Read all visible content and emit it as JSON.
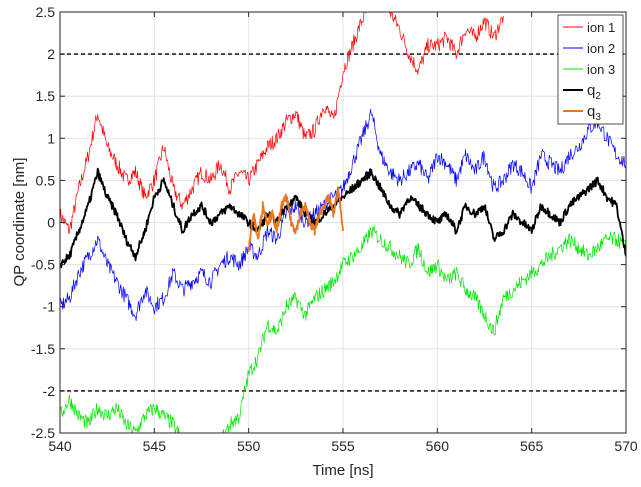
{
  "chart_data": {
    "type": "line",
    "xlabel": "Time [ns]",
    "ylabel": "QP coordinate [nm]",
    "xlim": [
      540,
      570
    ],
    "ylim": [
      -2.5,
      2.5
    ],
    "xticks": [
      540,
      545,
      550,
      555,
      560,
      565,
      570
    ],
    "yticks": [
      -2.5,
      -2,
      -1.5,
      -1,
      -0.5,
      0,
      0.5,
      1,
      1.5,
      2,
      2.5
    ],
    "xtick_labels": [
      "540",
      "545",
      "550",
      "555",
      "560",
      "565",
      "570"
    ],
    "ytick_labels": [
      "-2.5",
      "-2",
      "-1.5",
      "-1",
      "-0.5",
      "0",
      "0.5",
      "1",
      "1.5",
      "2",
      "2.5"
    ],
    "grid": true,
    "legend_position": "top-right",
    "reference_lines": [
      {
        "y": 2,
        "style": "dashed",
        "color": "#000000"
      },
      {
        "y": -2,
        "style": "dashed",
        "color": "#000000"
      }
    ],
    "series": [
      {
        "name": "ion 1",
        "color": "#ff0000",
        "noise": 0.09,
        "x": [
          540,
          540.5,
          541,
          541.5,
          542,
          542.5,
          543,
          543.5,
          544,
          544.5,
          545,
          545.5,
          546,
          546.5,
          547,
          547.5,
          548,
          548.5,
          549,
          549.5,
          550,
          550.5,
          551,
          551.5,
          552,
          552.5,
          553,
          553.5,
          554,
          554.5,
          555,
          555.5,
          556,
          556.5,
          557,
          557.5,
          558,
          558.5,
          559,
          559.5,
          560,
          560.5,
          561,
          561.5,
          562,
          562.5,
          563,
          563.5
        ],
        "y": [
          0.1,
          -0.1,
          0.4,
          0.8,
          1.3,
          0.9,
          0.7,
          0.5,
          0.6,
          0.3,
          0.5,
          0.9,
          0.4,
          0.2,
          0.4,
          0.6,
          0.5,
          0.7,
          0.4,
          0.6,
          0.5,
          0.7,
          0.9,
          1.0,
          1.2,
          1.3,
          1.0,
          1.1,
          1.4,
          1.2,
          1.8,
          2.1,
          2.4,
          2.6,
          2.6,
          2.5,
          2.3,
          2.0,
          1.8,
          2.1,
          2.1,
          2.2,
          2.0,
          2.3,
          2.2,
          2.4,
          2.2,
          2.45
        ]
      },
      {
        "name": "ion 2",
        "color": "#0000ff",
        "noise": 0.09,
        "x": [
          540,
          540.5,
          541,
          541.5,
          542,
          542.5,
          543,
          543.5,
          544,
          544.5,
          545,
          545.5,
          546,
          546.5,
          547,
          547.5,
          548,
          548.5,
          549,
          549.5,
          550,
          550.5,
          551,
          551.5,
          552,
          552.5,
          553,
          553.5,
          554,
          554.5,
          555,
          555.5,
          556,
          556.5,
          557,
          557.5,
          558,
          558.5,
          559,
          559.5,
          560,
          560.5,
          561,
          561.5,
          562,
          562.5,
          563,
          563.5,
          564,
          564.5,
          565,
          565.5,
          566,
          566.5,
          567,
          567.5,
          568,
          568.5,
          569,
          569.5,
          570
        ],
        "y": [
          -1.0,
          -0.9,
          -0.6,
          -0.4,
          -0.2,
          -0.5,
          -0.7,
          -0.9,
          -1.1,
          -0.8,
          -1.0,
          -0.9,
          -0.6,
          -0.8,
          -0.7,
          -0.6,
          -0.7,
          -0.5,
          -0.4,
          -0.5,
          -0.3,
          -0.4,
          -0.1,
          -0.2,
          0.1,
          0.2,
          0.0,
          0.1,
          0.2,
          0.3,
          0.4,
          0.7,
          1.0,
          1.3,
          0.8,
          0.6,
          0.5,
          0.6,
          0.7,
          0.5,
          0.8,
          0.7,
          0.5,
          0.8,
          0.6,
          0.8,
          0.4,
          0.5,
          0.7,
          0.6,
          0.4,
          0.8,
          0.7,
          0.6,
          0.8,
          0.9,
          1.1,
          1.2,
          1.0,
          0.8,
          0.7
        ]
      },
      {
        "name": "ion 3",
        "color": "#00e600",
        "noise": 0.09,
        "x": [
          540,
          540.5,
          541,
          541.5,
          542,
          542.5,
          543,
          543.5,
          544,
          544.5,
          545,
          545.5,
          546,
          546.5,
          547,
          547.5,
          548,
          548.5,
          549,
          549.5,
          550,
          550.5,
          551,
          551.5,
          552,
          552.5,
          553,
          553.5,
          554,
          554.5,
          555,
          555.5,
          556,
          556.5,
          557,
          557.5,
          558,
          558.5,
          559,
          559.5,
          560,
          560.5,
          561,
          561.5,
          562,
          562.5,
          563,
          563.5,
          564,
          564.5,
          565,
          565.5,
          566,
          566.5,
          567,
          567.5,
          568,
          568.5,
          569,
          569.5,
          570
        ],
        "y": [
          -2.3,
          -2.1,
          -2.3,
          -2.4,
          -2.2,
          -2.3,
          -2.2,
          -2.4,
          -2.5,
          -2.3,
          -2.2,
          -2.3,
          -2.4,
          -2.6,
          -2.7,
          -2.6,
          -2.8,
          -2.6,
          -2.4,
          -2.3,
          -1.8,
          -1.6,
          -1.2,
          -1.3,
          -1.0,
          -0.9,
          -1.1,
          -0.9,
          -0.8,
          -0.7,
          -0.5,
          -0.4,
          -0.3,
          -0.1,
          -0.2,
          -0.3,
          -0.4,
          -0.5,
          -0.3,
          -0.6,
          -0.5,
          -0.7,
          -0.6,
          -0.8,
          -0.9,
          -1.1,
          -1.3,
          -0.9,
          -0.8,
          -0.7,
          -0.6,
          -0.5,
          -0.4,
          -0.3,
          -0.2,
          -0.3,
          -0.4,
          -0.3,
          -0.2,
          -0.2,
          -0.3
        ]
      },
      {
        "name": "q",
        "name_subscript": "2",
        "color": "#000000",
        "noise": 0.05,
        "x": [
          540,
          540.5,
          541,
          541.5,
          542,
          542.5,
          543,
          543.5,
          544,
          544.5,
          545,
          545.5,
          546,
          546.5,
          547,
          547.5,
          548,
          548.5,
          549,
          549.5,
          550,
          550.5,
          551,
          551.5,
          552,
          552.5,
          553,
          553.5,
          554,
          554.5,
          555,
          555.5,
          556,
          556.5,
          557,
          557.5,
          558,
          558.5,
          559,
          559.5,
          560,
          560.5,
          561,
          561.5,
          562,
          562.5,
          563,
          563.5,
          564,
          564.5,
          565,
          565.5,
          566,
          566.5,
          567,
          567.5,
          568,
          568.5,
          569,
          569.5,
          570
        ],
        "y": [
          -0.5,
          -0.4,
          -0.1,
          0.2,
          0.6,
          0.3,
          0.1,
          -0.2,
          -0.4,
          -0.1,
          0.3,
          0.5,
          0.2,
          -0.1,
          0.1,
          0.2,
          0.0,
          0.1,
          0.2,
          0.1,
          0.0,
          -0.1,
          0.1,
          0.0,
          0.2,
          0.3,
          0.1,
          0.0,
          0.1,
          0.2,
          0.3,
          0.4,
          0.5,
          0.6,
          0.4,
          0.2,
          0.1,
          0.3,
          0.2,
          0.1,
          0.0,
          0.1,
          -0.1,
          0.2,
          0.1,
          0.2,
          -0.2,
          -0.1,
          0.1,
          0.0,
          -0.1,
          0.2,
          0.1,
          0.0,
          0.2,
          0.3,
          0.4,
          0.5,
          0.3,
          0.2,
          -0.4
        ]
      },
      {
        "name": "q",
        "name_subscript": "3",
        "color": "#e87722",
        "noise": 0.05,
        "x": [
          550,
          550.25,
          550.5,
          550.75,
          551,
          551.25,
          551.5,
          551.75,
          552,
          552.25,
          552.5,
          552.75,
          553,
          553.25,
          553.5,
          553.75,
          554,
          554.25,
          554.5,
          554.75,
          555
        ],
        "y": [
          -0.3,
          0.1,
          -0.2,
          0.2,
          0.0,
          0.1,
          -0.1,
          0.2,
          0.3,
          0.0,
          -0.1,
          0.1,
          0.2,
          0.0,
          -0.1,
          0.1,
          0.2,
          0.3,
          0.1,
          0.4,
          -0.1
        ]
      }
    ]
  }
}
